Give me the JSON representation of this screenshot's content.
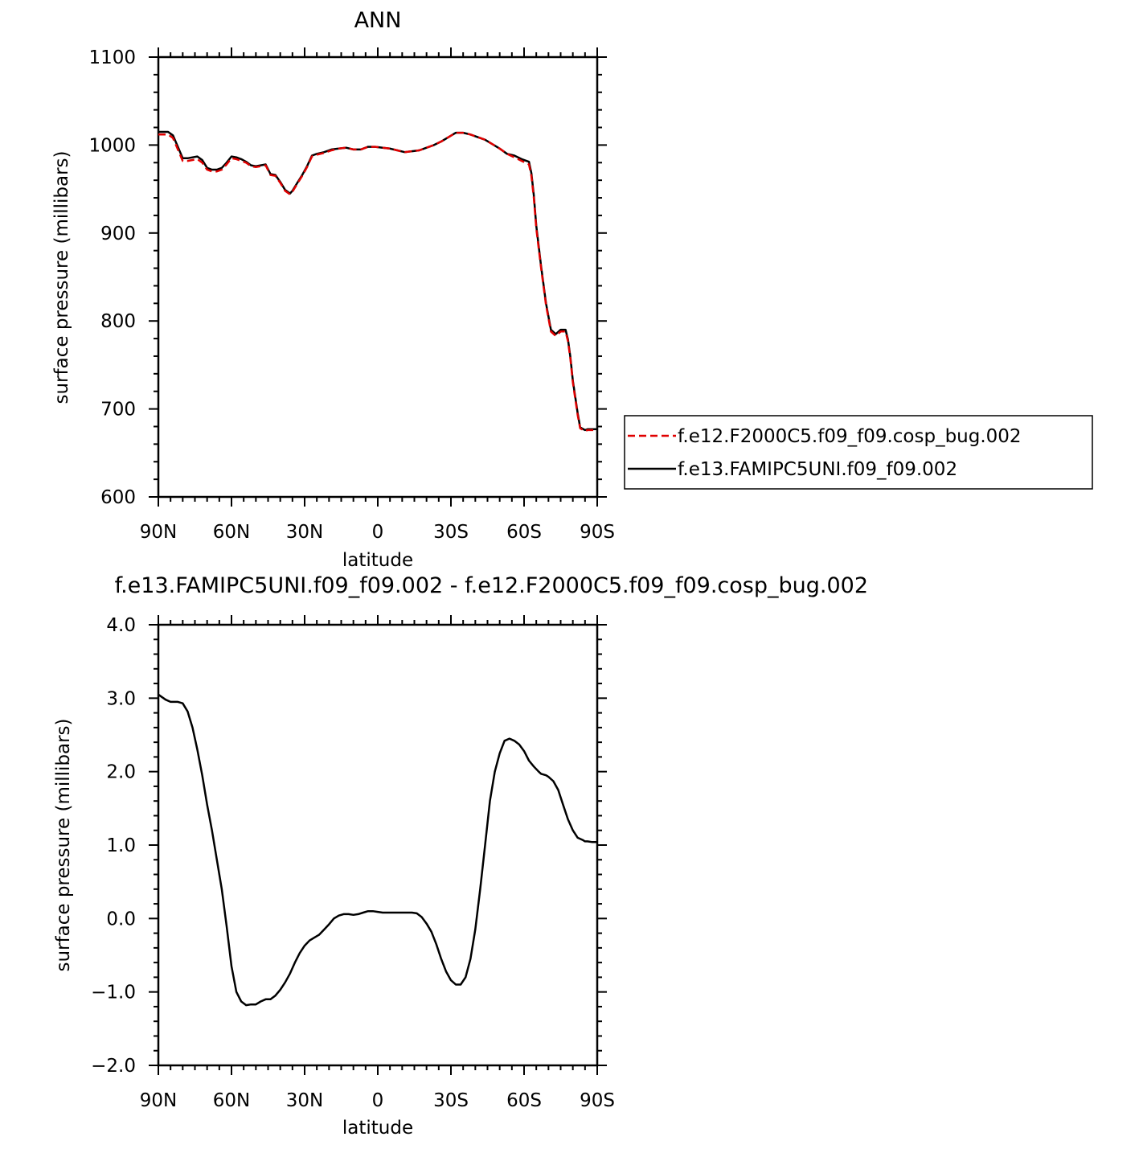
{
  "chart_data": [
    {
      "type": "line",
      "title": "ANN",
      "xlabel": "latitude",
      "ylabel": "surface pressure (millibars)",
      "x_tick_labels": [
        "90N",
        "60N",
        "30N",
        "0",
        "30S",
        "60S",
        "90S"
      ],
      "x_ticks": [
        90,
        60,
        30,
        0,
        -30,
        -60,
        -90
      ],
      "xlim": [
        90,
        -90
      ],
      "ylim": [
        600,
        1100
      ],
      "y_ticks": [
        600,
        700,
        800,
        900,
        1000,
        1100
      ],
      "y_tick_labels": [
        "600",
        "700",
        "800",
        "900",
        "1000",
        "1100"
      ],
      "grid": false,
      "legend_position": "right",
      "series": [
        {
          "name": "f.e12.F2000C5.f09_f09.cosp_bug.002",
          "color": "#e00000",
          "dash": "dashed",
          "x": [
            90,
            86,
            84,
            82,
            80,
            78,
            76,
            74,
            72,
            70,
            68,
            66,
            64,
            62,
            60,
            58,
            56,
            54,
            52,
            50,
            48,
            46,
            44,
            42,
            40,
            38,
            36,
            35,
            33,
            31,
            29,
            27,
            25,
            22,
            19,
            16,
            13,
            10,
            7,
            4,
            1,
            -2,
            -5,
            -8,
            -11,
            -14,
            -17,
            -20,
            -23,
            -26,
            -29,
            -32,
            -35,
            -38,
            -41,
            -44,
            -47,
            -50,
            -53,
            -56,
            -59,
            -62,
            -63,
            -64,
            -65,
            -67,
            -69,
            -71,
            -73,
            -75,
            -77,
            -78,
            -79,
            -80,
            -82,
            -83,
            -85,
            -86,
            -87,
            -88,
            -89,
            -90
          ],
          "y": [
            1012,
            1012,
            1008,
            995,
            982,
            982,
            983,
            984,
            980,
            972,
            970,
            970,
            972,
            978,
            985,
            984,
            982,
            980,
            976,
            975,
            976,
            977,
            966,
            965,
            957,
            948,
            944,
            947,
            956,
            965,
            975,
            987,
            989,
            991,
            994,
            996,
            997,
            995,
            995,
            998,
            998,
            997,
            996,
            994,
            992,
            993,
            994,
            997,
            1000,
            1004,
            1009,
            1014,
            1014,
            1012,
            1009,
            1006,
            1001,
            996,
            990,
            986,
            982,
            978,
            965,
            940,
            905,
            860,
            818,
            788,
            783,
            788,
            788,
            777,
            757,
            730,
            693,
            678,
            675,
            676,
            676,
            676,
            676,
            676
          ]
        },
        {
          "name": "f.e13.FAMIPC5UNI.f09_f09.002",
          "color": "#000000",
          "dash": "solid",
          "x": [
            90,
            86,
            84,
            82,
            80,
            78,
            76,
            74,
            72,
            70,
            68,
            66,
            64,
            62,
            60,
            58,
            56,
            54,
            52,
            50,
            48,
            46,
            44,
            42,
            40,
            38,
            36,
            35,
            33,
            31,
            29,
            27,
            25,
            22,
            19,
            16,
            13,
            10,
            7,
            4,
            1,
            -2,
            -5,
            -8,
            -11,
            -14,
            -17,
            -20,
            -23,
            -26,
            -29,
            -32,
            -35,
            -38,
            -41,
            -44,
            -47,
            -50,
            -53,
            -56,
            -59,
            -62,
            -63,
            -64,
            -65,
            -67,
            -69,
            -71,
            -73,
            -75,
            -77,
            -78,
            -79,
            -80,
            -82,
            -83,
            -85,
            -86,
            -87,
            -88,
            -89,
            -90
          ],
          "y": [
            1015,
            1015,
            1011,
            998,
            985,
            985,
            986,
            987,
            983,
            974,
            972,
            972,
            974,
            980,
            987,
            986,
            984,
            981,
            977,
            976,
            977,
            978,
            967,
            966,
            958,
            949,
            945,
            948,
            957,
            966,
            976,
            988,
            990,
            992,
            995,
            996,
            997,
            995,
            995,
            998,
            998,
            997,
            996,
            994,
            992,
            993,
            994,
            997,
            1000,
            1004,
            1009,
            1014,
            1014,
            1012,
            1009,
            1006,
            1001,
            996,
            990,
            988,
            984,
            981,
            968,
            943,
            908,
            862,
            820,
            790,
            785,
            790,
            790,
            779,
            759,
            732,
            695,
            679,
            676,
            677,
            677,
            677,
            677,
            677
          ]
        }
      ]
    },
    {
      "type": "line",
      "title": "f.e13.FAMIPC5UNI.f09_f09.002 - f.e12.F2000C5.f09_f09.cosp_bug.002",
      "xlabel": "latitude",
      "ylabel": "surface pressure (millibars)",
      "x_tick_labels": [
        "90N",
        "60N",
        "30N",
        "0",
        "30S",
        "60S",
        "90S"
      ],
      "x_ticks": [
        90,
        60,
        30,
        0,
        -30,
        -60,
        -90
      ],
      "xlim": [
        90,
        -90
      ],
      "ylim": [
        -2.0,
        4.0
      ],
      "y_ticks": [
        -2.0,
        -1.0,
        0.0,
        1.0,
        2.0,
        3.0,
        4.0
      ],
      "y_tick_labels": [
        "−2.0",
        "−1.0",
        "0.0",
        "1.0",
        "2.0",
        "3.0",
        "4.0"
      ],
      "grid": false,
      "series": [
        {
          "color": "#000000",
          "dash": "solid",
          "x": [
            90,
            87,
            85,
            82,
            80,
            78,
            76,
            74,
            72,
            70,
            68,
            66,
            64,
            62,
            60,
            58,
            56,
            54,
            52,
            50,
            48,
            46,
            44,
            42,
            40,
            38,
            36,
            34,
            32,
            30,
            28,
            26,
            24,
            22,
            20,
            18,
            16,
            14,
            12,
            10,
            8,
            6,
            4,
            2,
            0,
            -2,
            -4,
            -6,
            -8,
            -10,
            -12,
            -14,
            -16,
            -18,
            -20,
            -22,
            -24,
            -26,
            -28,
            -30,
            -32,
            -34,
            -36,
            -38,
            -40,
            -42,
            -44,
            -46,
            -48,
            -50,
            -52,
            -54,
            -56,
            -58,
            -60,
            -62,
            -64,
            -66,
            -67,
            -68,
            -69,
            -70,
            -72,
            -74,
            -76,
            -78,
            -80,
            -82,
            -84,
            -85,
            -86,
            -88,
            -90
          ],
          "y": [
            3.05,
            2.98,
            2.95,
            2.95,
            2.93,
            2.82,
            2.6,
            2.3,
            1.95,
            1.55,
            1.2,
            0.8,
            0.4,
            -0.1,
            -0.65,
            -1.0,
            -1.13,
            -1.18,
            -1.17,
            -1.17,
            -1.13,
            -1.1,
            -1.1,
            -1.05,
            -0.97,
            -0.87,
            -0.75,
            -0.6,
            -0.47,
            -0.37,
            -0.3,
            -0.26,
            -0.22,
            -0.15,
            -0.08,
            0.0,
            0.04,
            0.06,
            0.06,
            0.05,
            0.06,
            0.08,
            0.1,
            0.1,
            0.09,
            0.08,
            0.08,
            0.08,
            0.08,
            0.08,
            0.08,
            0.08,
            0.07,
            0.02,
            -0.07,
            -0.18,
            -0.35,
            -0.55,
            -0.72,
            -0.84,
            -0.9,
            -0.9,
            -0.8,
            -0.55,
            -0.15,
            0.4,
            1.0,
            1.6,
            2.0,
            2.25,
            2.42,
            2.45,
            2.42,
            2.37,
            2.28,
            2.15,
            2.07,
            2.0,
            1.97,
            1.96,
            1.95,
            1.93,
            1.87,
            1.75,
            1.55,
            1.35,
            1.2,
            1.1,
            1.07,
            1.05,
            1.05,
            1.04,
            1.04
          ]
        }
      ]
    }
  ]
}
